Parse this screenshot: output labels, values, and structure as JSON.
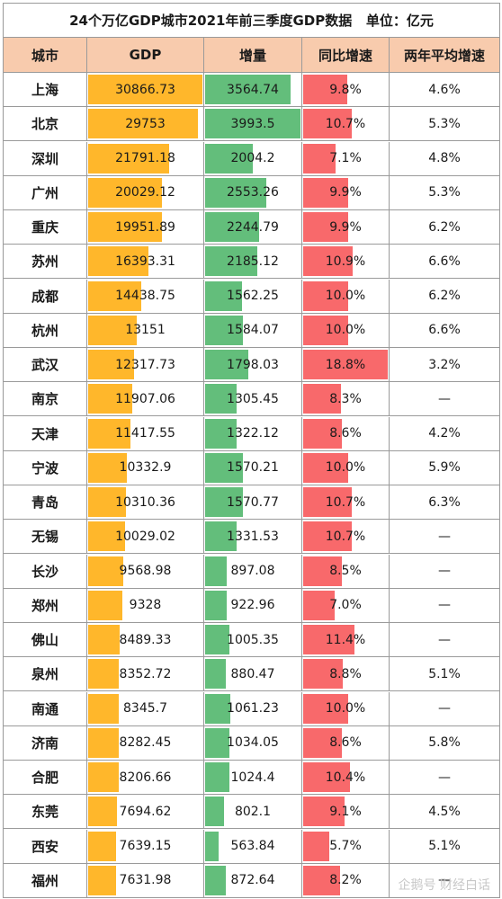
{
  "title": "24个万亿GDP城市2021年前三季度GDP数据   单位：亿元",
  "headers": [
    "城市",
    "GDP",
    "增量",
    "同比增速",
    "两年平均增速"
  ],
  "colors": {
    "gdp_bar": "#ffb72b",
    "increment_bar": "#63be7b",
    "growth_bar": "#f8696b",
    "header_bg": "#f8cbad"
  },
  "watermark": "企鹅号 财经白话",
  "chart_data": {
    "type": "table",
    "title": "24个万亿GDP城市2021年前三季度GDP数据   单位：亿元",
    "columns": [
      "城市",
      "GDP",
      "增量",
      "同比增速",
      "两年平均增速"
    ],
    "rows": [
      [
        "上海",
        "30866.73",
        "3564.74",
        "9.8%",
        "4.6%"
      ],
      [
        "北京",
        "29753",
        "3993.5",
        "10.7%",
        "5.3%"
      ],
      [
        "深圳",
        "21791.18",
        "2004.2",
        "7.1%",
        "4.8%"
      ],
      [
        "广州",
        "20029.12",
        "2553.26",
        "9.9%",
        "5.3%"
      ],
      [
        "重庆",
        "19951.89",
        "2244.79",
        "9.9%",
        "6.2%"
      ],
      [
        "苏州",
        "16393.31",
        "2185.12",
        "10.9%",
        "6.6%"
      ],
      [
        "成都",
        "14438.75",
        "1562.25",
        "10.0%",
        "6.2%"
      ],
      [
        "杭州",
        "13151",
        "1584.07",
        "10.0%",
        "6.6%"
      ],
      [
        "武汉",
        "12317.73",
        "1798.03",
        "18.8%",
        "3.2%"
      ],
      [
        "南京",
        "11907.06",
        "1305.45",
        "8.3%",
        "—"
      ],
      [
        "天津",
        "11417.55",
        "1322.12",
        "8.6%",
        "4.2%"
      ],
      [
        "宁波",
        "10332.9",
        "1570.21",
        "10.0%",
        "5.9%"
      ],
      [
        "青岛",
        "10310.36",
        "1570.77",
        "10.7%",
        "6.3%"
      ],
      [
        "无锡",
        "10029.02",
        "1331.53",
        "10.7%",
        "—"
      ],
      [
        "长沙",
        "9568.98",
        "897.08",
        "8.5%",
        "—"
      ],
      [
        "郑州",
        "9328",
        "922.96",
        "7.0%",
        "—"
      ],
      [
        "佛山",
        "8489.33",
        "1005.35",
        "11.4%",
        "—"
      ],
      [
        "泉州",
        "8352.72",
        "880.47",
        "8.8%",
        "5.1%"
      ],
      [
        "南通",
        "8345.7",
        "1061.23",
        "10.0%",
        "—"
      ],
      [
        "济南",
        "8282.45",
        "1034.05",
        "8.6%",
        "5.8%"
      ],
      [
        "合肥",
        "8206.66",
        "1024.4",
        "10.4%",
        "—"
      ],
      [
        "东莞",
        "7694.62",
        "802.1",
        "9.1%",
        "4.5%"
      ],
      [
        "西安",
        "7639.15",
        "563.84",
        "5.7%",
        "5.1%"
      ],
      [
        "福州",
        "7631.98",
        "872.64",
        "8.2%",
        "—"
      ]
    ]
  }
}
